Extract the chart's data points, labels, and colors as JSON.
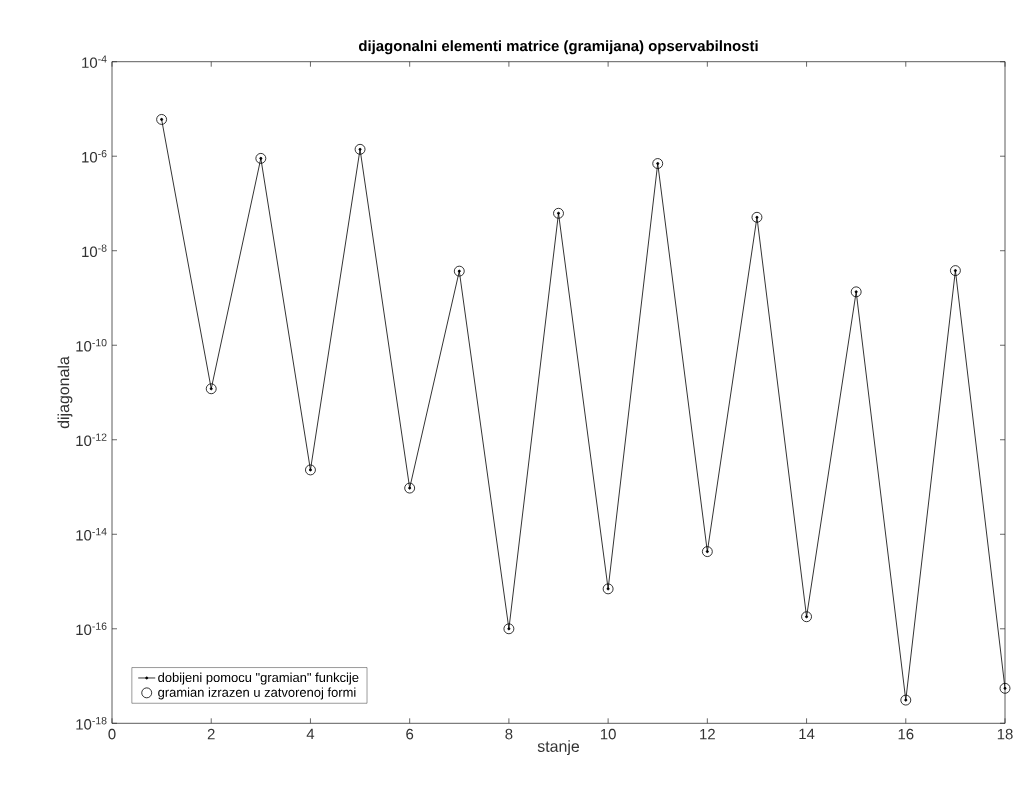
{
  "chart_data": {
    "type": "line",
    "title": "dijagonalni elementi matrice (gramijana) opservabilnosti",
    "xlabel": "stanje",
    "ylabel": "dijagonala",
    "x": [
      1,
      2,
      3,
      4,
      5,
      6,
      7,
      8,
      9,
      10,
      11,
      12,
      13,
      14,
      15,
      16,
      17,
      18
    ],
    "series": [
      {
        "name": "dobijeni pomocu \"gramian\" funkcije",
        "marker": "circle",
        "color": "#000000",
        "values": [
          6e-06,
          1.2e-11,
          9e-07,
          2.3e-13,
          1.4e-06,
          9.5e-14,
          3.7e-09,
          1e-16,
          6.2e-08,
          7e-16,
          7e-07,
          4.3e-15,
          5.1e-08,
          1.8e-16,
          1.35e-09,
          3.1e-18,
          3.8e-09,
          5.5e-18
        ]
      },
      {
        "name": "gramian izrazen u zatvorenoj formi",
        "type": "scatter",
        "marker": "circle",
        "color": "#000000",
        "values": [
          6e-06,
          1.2e-11,
          9e-07,
          2.3e-13,
          1.4e-06,
          9.5e-14,
          3.7e-09,
          1e-16,
          6.2e-08,
          7e-16,
          7e-07,
          4.3e-15,
          5.1e-08,
          1.8e-16,
          1.35e-09,
          3.1e-18,
          3.8e-09,
          5.5e-18
        ]
      }
    ],
    "log": "y",
    "xlim": [
      0,
      18
    ],
    "ylim": [
      1e-18,
      0.0001
    ],
    "xticks": [
      0,
      2,
      4,
      6,
      8,
      10,
      12,
      14,
      16,
      18
    ],
    "yticks": [
      {
        "value": 1e-18,
        "label": "10$^{-18}$"
      },
      {
        "value": 1e-16,
        "label": "10$^{-16}$"
      },
      {
        "value": 1e-14,
        "label": "10$^{-14}$"
      },
      {
        "value": 1e-12,
        "label": "10$^{-12}$"
      },
      {
        "value": 1e-10,
        "label": "10$^{-10}$"
      },
      {
        "value": 1e-08,
        "label": "10$^{-8}$"
      },
      {
        "value": 1e-06,
        "label": "10$^{-6}$"
      },
      {
        "value": 0.0001,
        "label": "10$^{-4}$"
      }
    ],
    "grid": false,
    "legend": "bottom left",
    "line_style": "solid"
  }
}
